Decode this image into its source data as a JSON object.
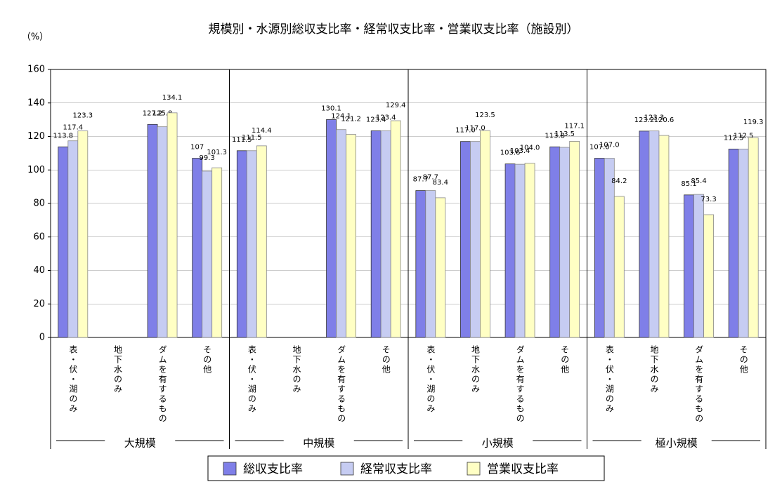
{
  "chart_data": {
    "type": "bar",
    "title": "規模別・水源別総収支比率・経常収支比率・営業収支比率（施設別）",
    "y_unit": "（%）",
    "groups": [
      {
        "name": "大規模",
        "categories": [
          "表・伏・湖のみ",
          "地下水のみ",
          "ダムを有するもの",
          "その他"
        ]
      },
      {
        "name": "中規模",
        "categories": [
          "表・伏・湖のみ",
          "地下水のみ",
          "ダムを有するもの",
          "その他"
        ]
      },
      {
        "name": "小規模",
        "categories": [
          "表・伏・湖のみ",
          "地下水のみ",
          "ダムを有するもの",
          "その他"
        ]
      },
      {
        "name": "極小規模",
        "categories": [
          "表・伏・湖のみ",
          "地下水のみ",
          "ダムを有するもの",
          "その他"
        ]
      }
    ],
    "series": [
      {
        "name": "総収支比率",
        "color": "#7f7fe8",
        "values": [
          113.8,
          null,
          127.2,
          107,
          111.5,
          null,
          130.1,
          123.4,
          87.7,
          117.0,
          103.6,
          113.8,
          107.0,
          123.2,
          85.1,
          112.5
        ],
        "value_labels": [
          "113.8",
          null,
          "127.2",
          "107",
          "111.5",
          null,
          "130.1",
          "123.4",
          "87.7",
          "117.0",
          "103.6",
          "113.8",
          "107.0",
          "123.2",
          "85.1",
          "112.5"
        ]
      },
      {
        "name": "経常収支比率",
        "color": "#c6ccf2",
        "values": [
          117.4,
          null,
          125.8,
          99.3,
          111.5,
          null,
          124.1,
          123.4,
          87.7,
          117.0,
          103.4,
          113.5,
          107.0,
          123.3,
          85.4,
          112.5
        ],
        "value_labels": [
          "117.4",
          null,
          "125.8",
          "99.3",
          "111.5",
          null,
          "124.1",
          "123.4",
          "87.7",
          "117.0",
          "103.4",
          "113.5",
          "107.0",
          "123.3",
          "85.4",
          "112.5"
        ]
      },
      {
        "name": "営業収支比率",
        "color": "#ffffc4",
        "values": [
          123.3,
          null,
          134.1,
          101.3,
          114.4,
          null,
          121.2,
          129.4,
          83.4,
          123.5,
          104.0,
          117.1,
          84.2,
          120.6,
          73.3,
          119.3
        ],
        "value_labels": [
          "123.3",
          null,
          "134.1",
          "101.3",
          "114.4",
          null,
          "121.2",
          "129.4",
          "83.4",
          "123.5",
          "104.0",
          "117.1",
          "84.2",
          "120.6",
          "73.3",
          "119.3"
        ]
      }
    ],
    "ylim": [
      0,
      160
    ],
    "yticks": [
      0,
      20,
      40,
      60,
      80,
      100,
      120,
      140,
      160
    ],
    "grid": true
  }
}
